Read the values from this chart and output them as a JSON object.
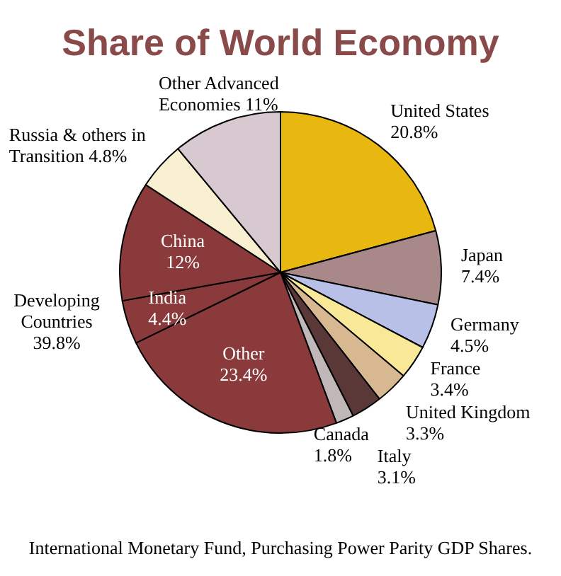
{
  "chart_data": {
    "type": "pie",
    "title": "Share of World Economy",
    "categories": [
      "United States",
      "Japan",
      "Germany",
      "France",
      "United Kingdom",
      "Italy",
      "Canada",
      "Other",
      "India",
      "China",
      "Russia & others in Transition",
      "Other Advanced Economies"
    ],
    "values": [
      20.8,
      7.4,
      4.5,
      3.4,
      3.3,
      3.1,
      1.8,
      23.4,
      4.4,
      12,
      4.8,
      11
    ],
    "value_labels": [
      "20.8%",
      "7.4%",
      "4.5%",
      "3.4%",
      "3.3%",
      "3.1%",
      "1.8%",
      "23.4%",
      "4.4%",
      "12%",
      "4.8%",
      "11%"
    ],
    "colors": [
      "#e8b810",
      "#a88888",
      "#b8c0e8",
      "#f8e898",
      "#d8b890",
      "#5a3838",
      "#c0b8b8",
      "#8a3a3a",
      "#8a3a3a",
      "#8a3a3a",
      "#f8f0d0",
      "#d8c8d0"
    ],
    "annotations": [
      "Developing Countries 39.8%",
      "International Monetary Fund, Purchasing Power Parity GDP Shares."
    ]
  }
}
